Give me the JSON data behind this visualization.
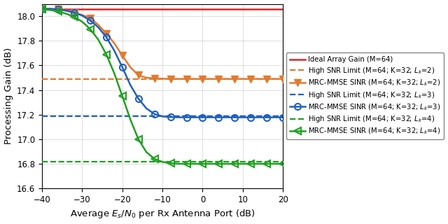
{
  "xlim": [
    -40,
    20
  ],
  "ylim": [
    16.6,
    18.1
  ],
  "xlabel": "Average $E_s/N_0$ per Rx Antenna Port (dB)",
  "ylabel": "Processing Gain (dB)",
  "ideal_array_gain": 18.06,
  "high_snr_lk2": 17.49,
  "high_snr_lk3": 17.185,
  "high_snr_lk4": 16.815,
  "color_red": "#d62728",
  "color_orange": "#e07b30",
  "color_blue": "#2060c0",
  "color_green": "#20a020",
  "snr_x": [
    -40,
    -38,
    -36,
    -34,
    -32,
    -30,
    -28,
    -26,
    -24,
    -22,
    -20,
    -18,
    -16,
    -14,
    -12,
    -10,
    -8,
    -6,
    -4,
    -2,
    0,
    2,
    4,
    6,
    8,
    10,
    12,
    14,
    16,
    18,
    20
  ],
  "lk2_y": [
    18.06,
    18.06,
    18.055,
    18.045,
    18.03,
    18.01,
    17.985,
    17.93,
    17.86,
    17.78,
    17.68,
    17.585,
    17.52,
    17.5,
    17.495,
    17.492,
    17.49,
    17.49,
    17.49,
    17.49,
    17.49,
    17.49,
    17.49,
    17.49,
    17.49,
    17.49,
    17.49,
    17.49,
    17.49,
    17.49,
    17.49
  ],
  "lk3_y": [
    18.06,
    18.06,
    18.055,
    18.045,
    18.03,
    18.005,
    17.965,
    17.91,
    17.83,
    17.72,
    17.585,
    17.44,
    17.33,
    17.25,
    17.205,
    17.185,
    17.18,
    17.178,
    17.178,
    17.178,
    17.178,
    17.178,
    17.178,
    17.178,
    17.178,
    17.178,
    17.178,
    17.178,
    17.178,
    17.178,
    17.178
  ],
  "lk4_y": [
    18.055,
    18.05,
    18.04,
    18.02,
    17.995,
    17.955,
    17.895,
    17.81,
    17.69,
    17.535,
    17.35,
    17.16,
    17.0,
    16.895,
    16.84,
    16.815,
    16.805,
    16.8,
    16.8,
    16.8,
    16.8,
    16.8,
    16.8,
    16.8,
    16.8,
    16.8,
    16.8,
    16.8,
    16.8,
    16.8,
    16.8
  ],
  "marker_x": [
    -40,
    -38,
    -36,
    -34,
    -32,
    -30,
    -28,
    -26,
    -24,
    -22,
    -20,
    -18,
    -16,
    -14,
    -12,
    -10,
    -8,
    -6,
    -4,
    -2,
    0,
    2,
    4,
    6,
    8,
    10,
    12,
    14,
    16,
    18,
    20
  ],
  "yticks": [
    16.6,
    16.8,
    17.0,
    17.2,
    17.4,
    17.6,
    17.8,
    18.0
  ],
  "xticks": [
    -40,
    -30,
    -20,
    -10,
    0,
    10,
    20
  ],
  "legend_labels": [
    "Ideal Array Gain (M=64)",
    "High SNR Limit (M=64; K=32; $L_k$=2)",
    "MRC-MMSE SINR (M=64; K=32; $L_k$=2)",
    "High SNR Limit (M=64; K=32; $L_k$=3)",
    "MRC-MMSE SINR (M=64; K=32; $L_k$=3)",
    "High SNR Limit (M=64; K=32; $L_k$=4)",
    "MRC-MMSE SINR (M=64; K=32; $L_k$=4)"
  ],
  "figwidth": 6.4,
  "figheight": 3.2,
  "dpi": 100
}
